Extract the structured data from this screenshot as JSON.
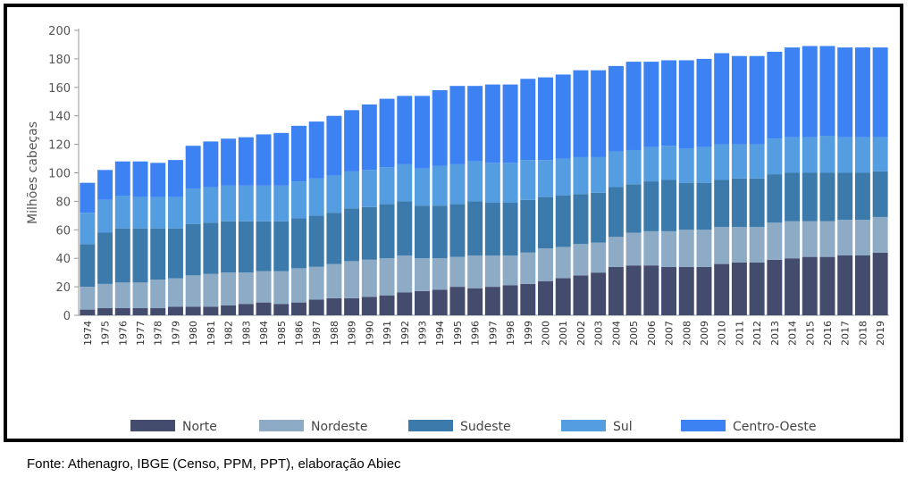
{
  "chart_data": {
    "type": "bar",
    "stacked": true,
    "ylabel": "Milhões cabeças",
    "xlabel": "",
    "ylim": [
      0,
      200
    ],
    "yticks": [
      0,
      20,
      40,
      60,
      80,
      100,
      120,
      140,
      160,
      180,
      200
    ],
    "grid": false,
    "legend_position": "bottom",
    "categories": [
      "1974",
      "1975",
      "1976",
      "1977",
      "1978",
      "1979",
      "1980",
      "1981",
      "1982",
      "1983",
      "1984",
      "1985",
      "1986",
      "1987",
      "1988",
      "1989",
      "1990",
      "1991",
      "1992",
      "1993",
      "1994",
      "1995",
      "1996",
      "1997",
      "1998",
      "1999",
      "2000",
      "2001",
      "2002",
      "2003",
      "2004",
      "2005",
      "2006",
      "2007",
      "2008",
      "2009",
      "2010",
      "2011",
      "2012",
      "2013",
      "2014",
      "2015",
      "2016",
      "2017",
      "2018",
      "2019"
    ],
    "series": [
      {
        "name": "Norte",
        "color": "#444c6e",
        "values": [
          4,
          5,
          5,
          5,
          5,
          6,
          6,
          6,
          7,
          8,
          9,
          8,
          9,
          11,
          12,
          12,
          13,
          14,
          16,
          17,
          18,
          20,
          19,
          20,
          21,
          22,
          24,
          26,
          28,
          30,
          34,
          35,
          35,
          34,
          34,
          34,
          36,
          37,
          37,
          39,
          40,
          41,
          41,
          42,
          42,
          44
        ]
      },
      {
        "name": "Nordeste",
        "color": "#8eabc6",
        "values": [
          16,
          17,
          18,
          18,
          20,
          20,
          22,
          23,
          23,
          22,
          22,
          23,
          24,
          23,
          24,
          26,
          26,
          26,
          26,
          23,
          22,
          21,
          23,
          22,
          21,
          22,
          23,
          22,
          22,
          21,
          21,
          23,
          24,
          25,
          26,
          26,
          26,
          25,
          25,
          26,
          26,
          25,
          25,
          25,
          25,
          25
        ]
      },
      {
        "name": "Sudeste",
        "color": "#3c7aab",
        "values": [
          30,
          36,
          38,
          38,
          36,
          35,
          36,
          36,
          36,
          36,
          35,
          35,
          35,
          36,
          36,
          37,
          37,
          38,
          38,
          37,
          37,
          37,
          38,
          37,
          37,
          37,
          36,
          36,
          35,
          35,
          35,
          34,
          35,
          36,
          33,
          33,
          33,
          34,
          34,
          34,
          34,
          34,
          34,
          33,
          33,
          32
        ]
      },
      {
        "name": "Sul",
        "color": "#559de1",
        "values": [
          22,
          23,
          23,
          22,
          22,
          22,
          25,
          25,
          25,
          25,
          25,
          25,
          26,
          26,
          26,
          26,
          26,
          26,
          26,
          26,
          28,
          28,
          28,
          28,
          28,
          28,
          26,
          26,
          26,
          25,
          25,
          24,
          24,
          24,
          24,
          25,
          25,
          24,
          24,
          25,
          25,
          25,
          26,
          25,
          25,
          24
        ]
      },
      {
        "name": "Centro-Oeste",
        "color": "#3d82f2",
        "values": [
          21,
          21,
          24,
          25,
          24,
          26,
          30,
          32,
          33,
          34,
          36,
          37,
          39,
          40,
          42,
          43,
          46,
          48,
          48,
          51,
          53,
          55,
          53,
          55,
          55,
          57,
          58,
          59,
          61,
          61,
          60,
          62,
          60,
          60,
          62,
          62,
          64,
          62,
          62,
          61,
          63,
          64,
          63,
          63,
          63,
          63
        ]
      }
    ]
  },
  "source_note": "Fonte: Athenagro, IBGE (Censo, PPM, PPT), elaboração Abiec"
}
